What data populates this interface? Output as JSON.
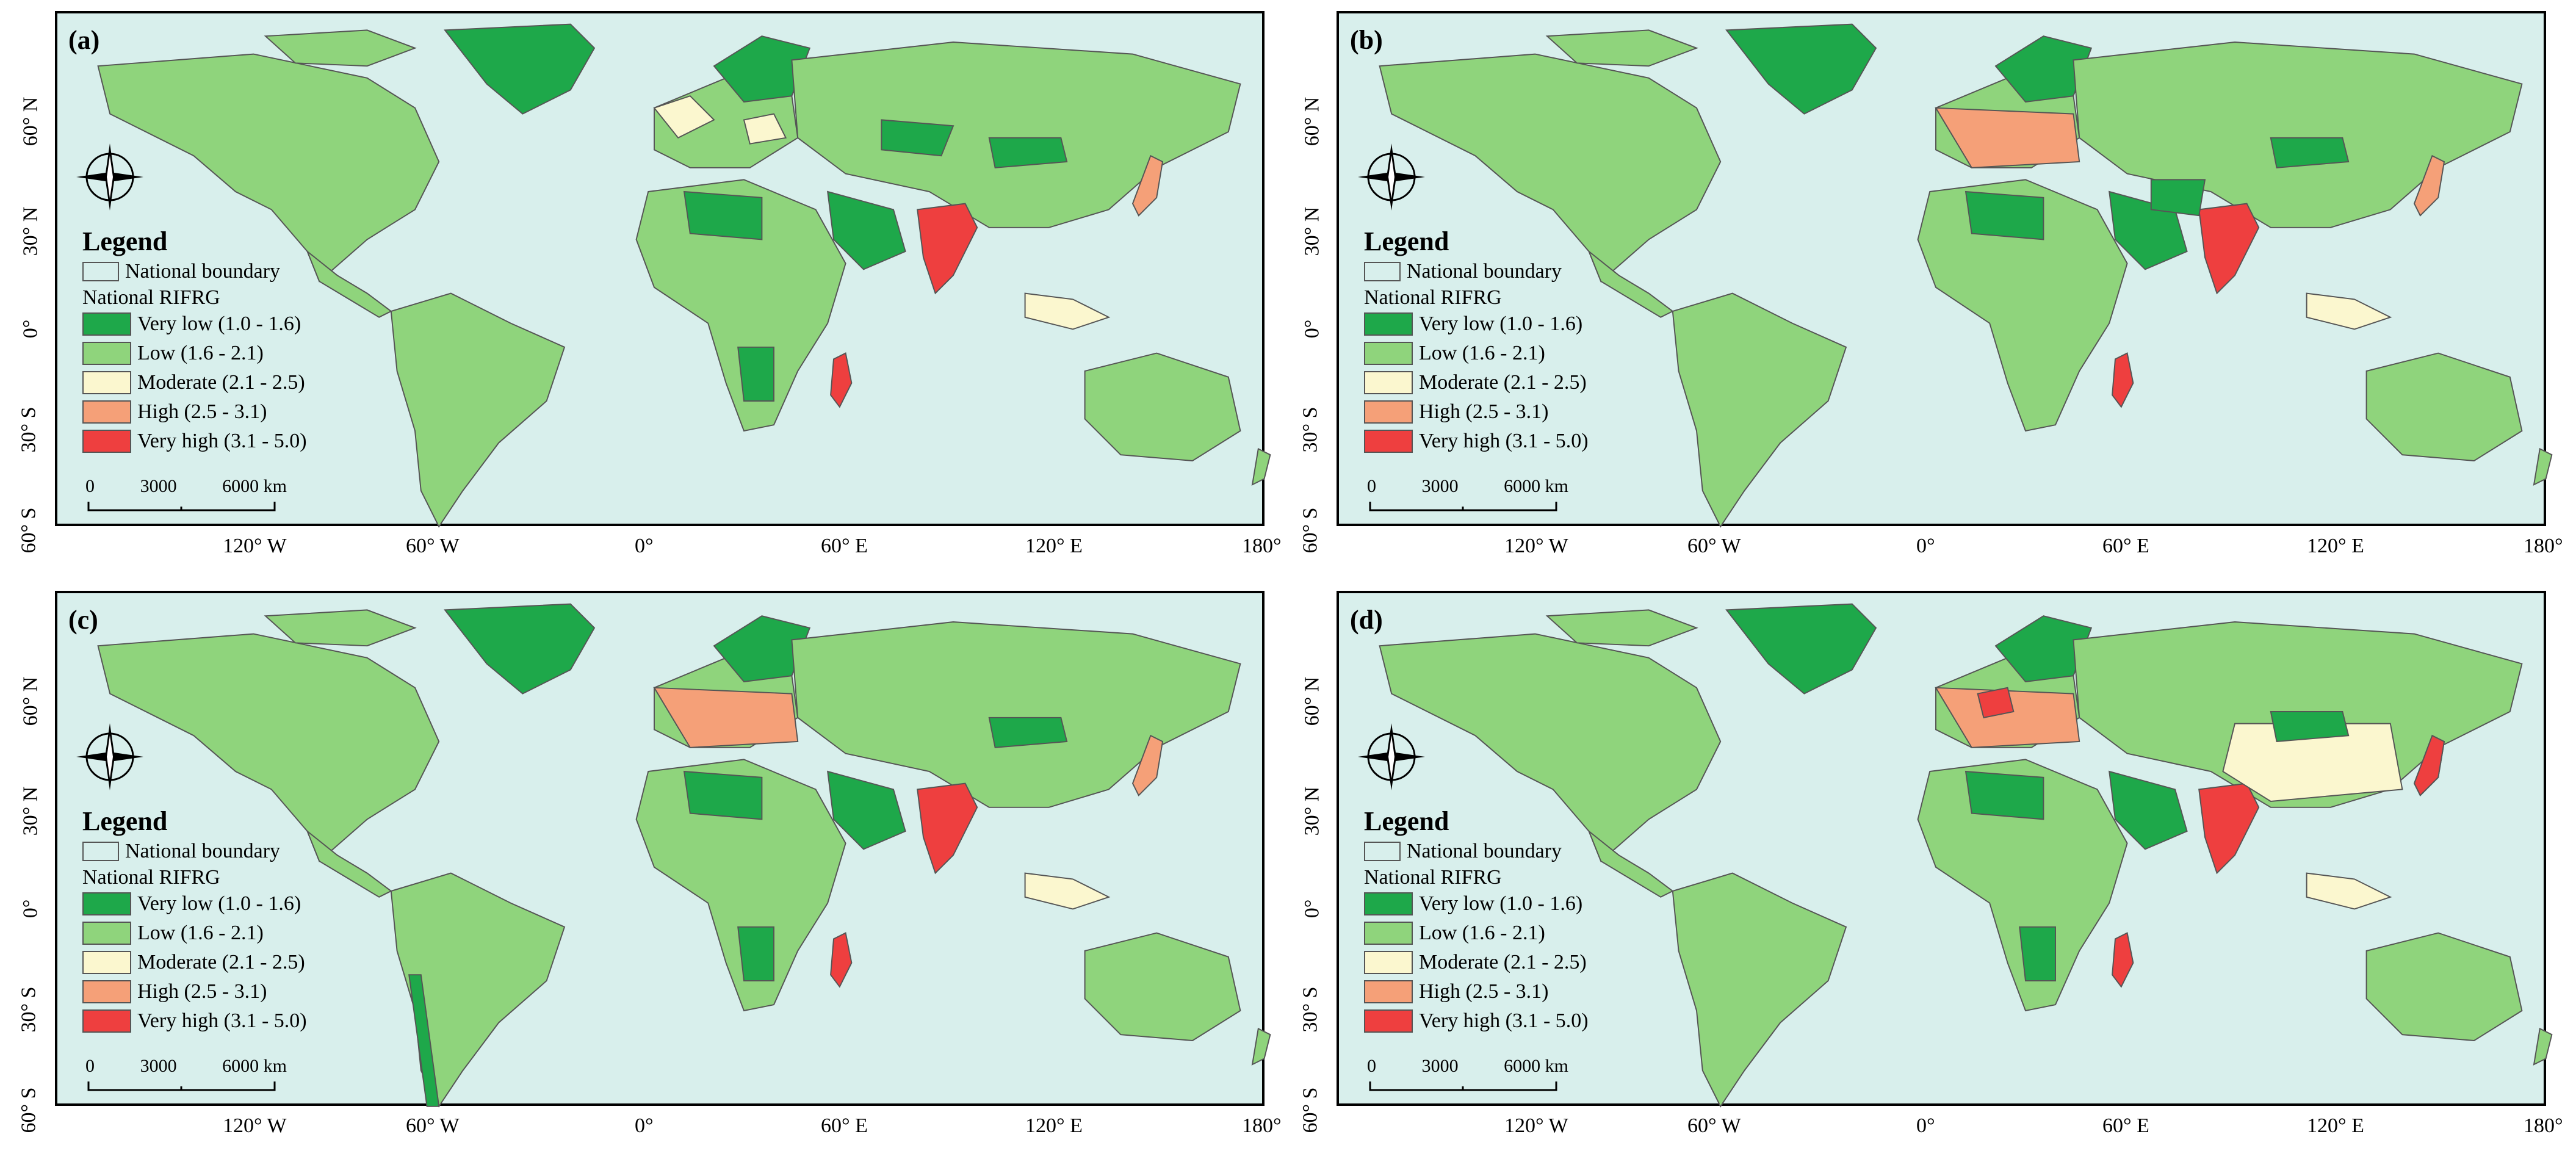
{
  "legend": {
    "title": "Legend",
    "boundary_label": "National boundary",
    "subtitle": "National RIFRG",
    "classes": [
      {
        "label": "Very low (1.0 - 1.6)",
        "color": "#1ea84a"
      },
      {
        "label": "Low (1.6 - 2.1)",
        "color": "#8fd47c"
      },
      {
        "label": "Moderate (2.1 - 2.5)",
        "color": "#fbf7cf"
      },
      {
        "label": "High (2.5 - 3.1)",
        "color": "#f5a078"
      },
      {
        "label": "Very high (3.1 - 5.0)",
        "color": "#ee3f3f"
      }
    ]
  },
  "scalebar": {
    "labels": [
      "0",
      "3000",
      "6000 km"
    ]
  },
  "compass": {
    "n": "N",
    "s": "S",
    "e": "E",
    "w": "W"
  },
  "x_ticks": [
    "120° W",
    "60° W",
    "0°",
    "60° E",
    "120° E",
    "180°"
  ],
  "y_ticks": [
    "60° N",
    "30° N",
    "0°",
    "30° S",
    "60° S"
  ],
  "colors": {
    "ocean": "#d8efec",
    "boundary": "#555555"
  },
  "panels": [
    {
      "label": "(a)"
    },
    {
      "label": "(b)"
    },
    {
      "label": "(c)"
    },
    {
      "label": "(d)"
    }
  ]
}
